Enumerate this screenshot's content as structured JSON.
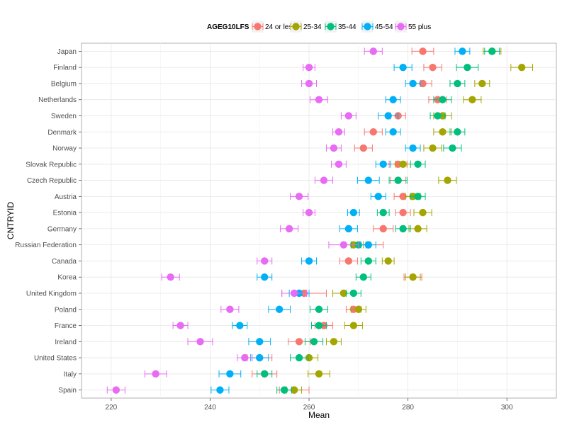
{
  "chart_data": {
    "type": "scatter",
    "title": "",
    "xlabel": "Mean",
    "ylabel": "CNTRYID",
    "xlim": [
      214,
      310
    ],
    "xticks": [
      220,
      240,
      260,
      280,
      300
    ],
    "legend": {
      "title": "AGEG10LFS",
      "position": "top"
    },
    "categories": [
      "Japan",
      "Finland",
      "Belgium",
      "Netherlands",
      "Sweden",
      "Denmark",
      "Norway",
      "Slovak Republic",
      "Czech Republic",
      "Austria",
      "Estonia",
      "Germany",
      "Russian Federation",
      "Canada",
      "Korea",
      "United Kingdom",
      "Poland",
      "France",
      "Ireland",
      "United States",
      "Italy",
      "Spain"
    ],
    "series": [
      {
        "name": "24 or less",
        "color": "#F8766D",
        "values": [
          283,
          285,
          283,
          286,
          278,
          273,
          271,
          278,
          278,
          279,
          279,
          275,
          272,
          268,
          281,
          259,
          269,
          263,
          258,
          250,
          251,
          257
        ],
        "errors": [
          2.2,
          1.8,
          1.8,
          1.8,
          1.5,
          1.8,
          1.8,
          1.8,
          1.5,
          1.8,
          1.5,
          2.0,
          3.0,
          1.8,
          1.8,
          4.5,
          1.5,
          1.8,
          2.2,
          2.5,
          2.5,
          3.0
        ]
      },
      {
        "name": "25-34",
        "color": "#A3A500",
        "values": [
          297,
          303,
          295,
          293,
          287,
          287,
          285,
          279,
          288,
          281,
          283,
          282,
          269,
          276,
          281,
          267,
          270,
          269,
          265,
          260,
          262,
          257
        ],
        "errors": [
          1.8,
          2.2,
          1.5,
          1.8,
          1.8,
          1.8,
          1.8,
          1.5,
          1.8,
          1.5,
          1.8,
          1.8,
          2.0,
          1.2,
          1.5,
          2.2,
          1.5,
          1.8,
          1.5,
          1.8,
          2.2,
          1.5
        ]
      },
      {
        "name": "35-44",
        "color": "#00BF7D",
        "values": [
          297,
          292,
          290,
          287,
          286,
          290,
          289,
          282,
          278,
          282,
          275,
          279,
          270,
          272,
          271,
          269,
          262,
          262,
          261,
          258,
          251,
          255
        ],
        "errors": [
          1.5,
          2.2,
          1.5,
          1.8,
          1.5,
          1.5,
          1.8,
          1.5,
          1.8,
          1.5,
          1.2,
          1.5,
          1.5,
          1.5,
          1.5,
          1.5,
          1.8,
          1.5,
          1.8,
          1.8,
          1.5,
          1.5
        ]
      },
      {
        "name": "45-54",
        "color": "#00B0F6",
        "values": [
          291,
          279,
          281,
          277,
          276,
          277,
          281,
          275,
          272,
          274,
          269,
          268,
          272,
          260,
          251,
          258,
          254,
          246,
          250,
          250,
          244,
          242
        ],
        "errors": [
          1.5,
          1.8,
          1.5,
          1.5,
          2.0,
          1.5,
          1.5,
          1.5,
          2.2,
          1.5,
          1.2,
          1.8,
          1.5,
          1.5,
          1.5,
          2.0,
          2.2,
          1.5,
          2.2,
          1.8,
          2.2,
          1.8
        ]
      },
      {
        "name": "55 plus",
        "color": "#E76BF3",
        "values": [
          273,
          260,
          260,
          262,
          268,
          266,
          265,
          266,
          263,
          258,
          260,
          256,
          267,
          251,
          232,
          257,
          244,
          234,
          238,
          247,
          229,
          221
        ],
        "errors": [
          1.8,
          1.2,
          1.5,
          1.8,
          1.5,
          1.2,
          1.5,
          1.5,
          1.8,
          1.8,
          1.2,
          1.8,
          3.0,
          1.5,
          1.8,
          2.5,
          1.8,
          1.5,
          2.5,
          1.5,
          2.2,
          1.8
        ]
      }
    ]
  }
}
